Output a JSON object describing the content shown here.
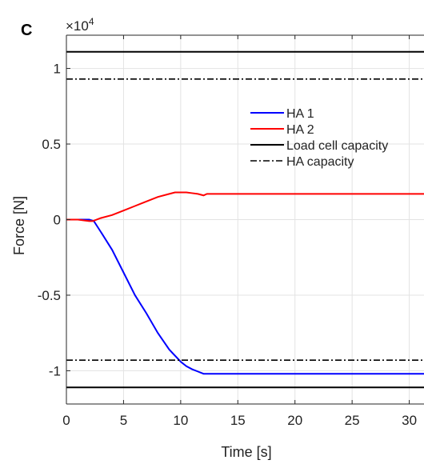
{
  "panel_label": "C",
  "chart_data": {
    "type": "line",
    "xlabel": "Time [s]",
    "ylabel": "Force [N]",
    "y_multiplier": {
      "base": "×10",
      "exponent": "4"
    },
    "xlim": [
      0,
      31.5
    ],
    "ylim": [
      -1.22,
      1.22
    ],
    "x_ticks": [
      0,
      5,
      10,
      15,
      20,
      25,
      30
    ],
    "x_tick_labels": [
      "0",
      "5",
      "10",
      "15",
      "20",
      "25",
      "30"
    ],
    "y_ticks": [
      1,
      0.5,
      0,
      -0.5,
      -1
    ],
    "y_tick_labels": [
      "1",
      "0.5",
      "0",
      "-0.5",
      "-1"
    ],
    "grid": true,
    "legend_position": "top-right",
    "series": [
      {
        "name": "HA 1",
        "color": "#0000ff",
        "style": "solid",
        "x": [
          0,
          1,
          2,
          2.4,
          3,
          4,
          5,
          6,
          7,
          8,
          9,
          10,
          10.5,
          11,
          11.5,
          12,
          12.3,
          15,
          20,
          25,
          31.5
        ],
        "y": [
          0,
          0,
          0,
          -0.01,
          -0.08,
          -0.2,
          -0.35,
          -0.5,
          -0.62,
          -0.75,
          -0.86,
          -0.94,
          -0.97,
          -0.99,
          -1.005,
          -1.02,
          -1.02,
          -1.02,
          -1.02,
          -1.02,
          -1.02
        ]
      },
      {
        "name": "HA 2",
        "color": "#ff0000",
        "style": "solid",
        "x": [
          0,
          1,
          2,
          2.3,
          3,
          4,
          5,
          6,
          7,
          8,
          9,
          9.5,
          10,
          10.5,
          11,
          11.5,
          12,
          12.3,
          13,
          15,
          20,
          25,
          31.5
        ],
        "y": [
          0,
          0,
          -0.01,
          -0.01,
          0.01,
          0.03,
          0.06,
          0.09,
          0.12,
          0.15,
          0.17,
          0.18,
          0.18,
          0.18,
          0.175,
          0.17,
          0.16,
          0.17,
          0.17,
          0.17,
          0.17,
          0.17,
          0.17
        ]
      },
      {
        "name": "Load cell capacity",
        "color": "#000000",
        "style": "solid",
        "x": [
          0,
          31.5,
          null,
          0,
          31.5
        ],
        "y": [
          1.11,
          1.11,
          null,
          -1.11,
          -1.11
        ]
      },
      {
        "name": "HA capacity",
        "color": "#000000",
        "style": "dashdot",
        "x": [
          0,
          31.5,
          null,
          0,
          31.5
        ],
        "y": [
          0.93,
          0.93,
          null,
          -0.93,
          -0.93
        ]
      }
    ]
  }
}
